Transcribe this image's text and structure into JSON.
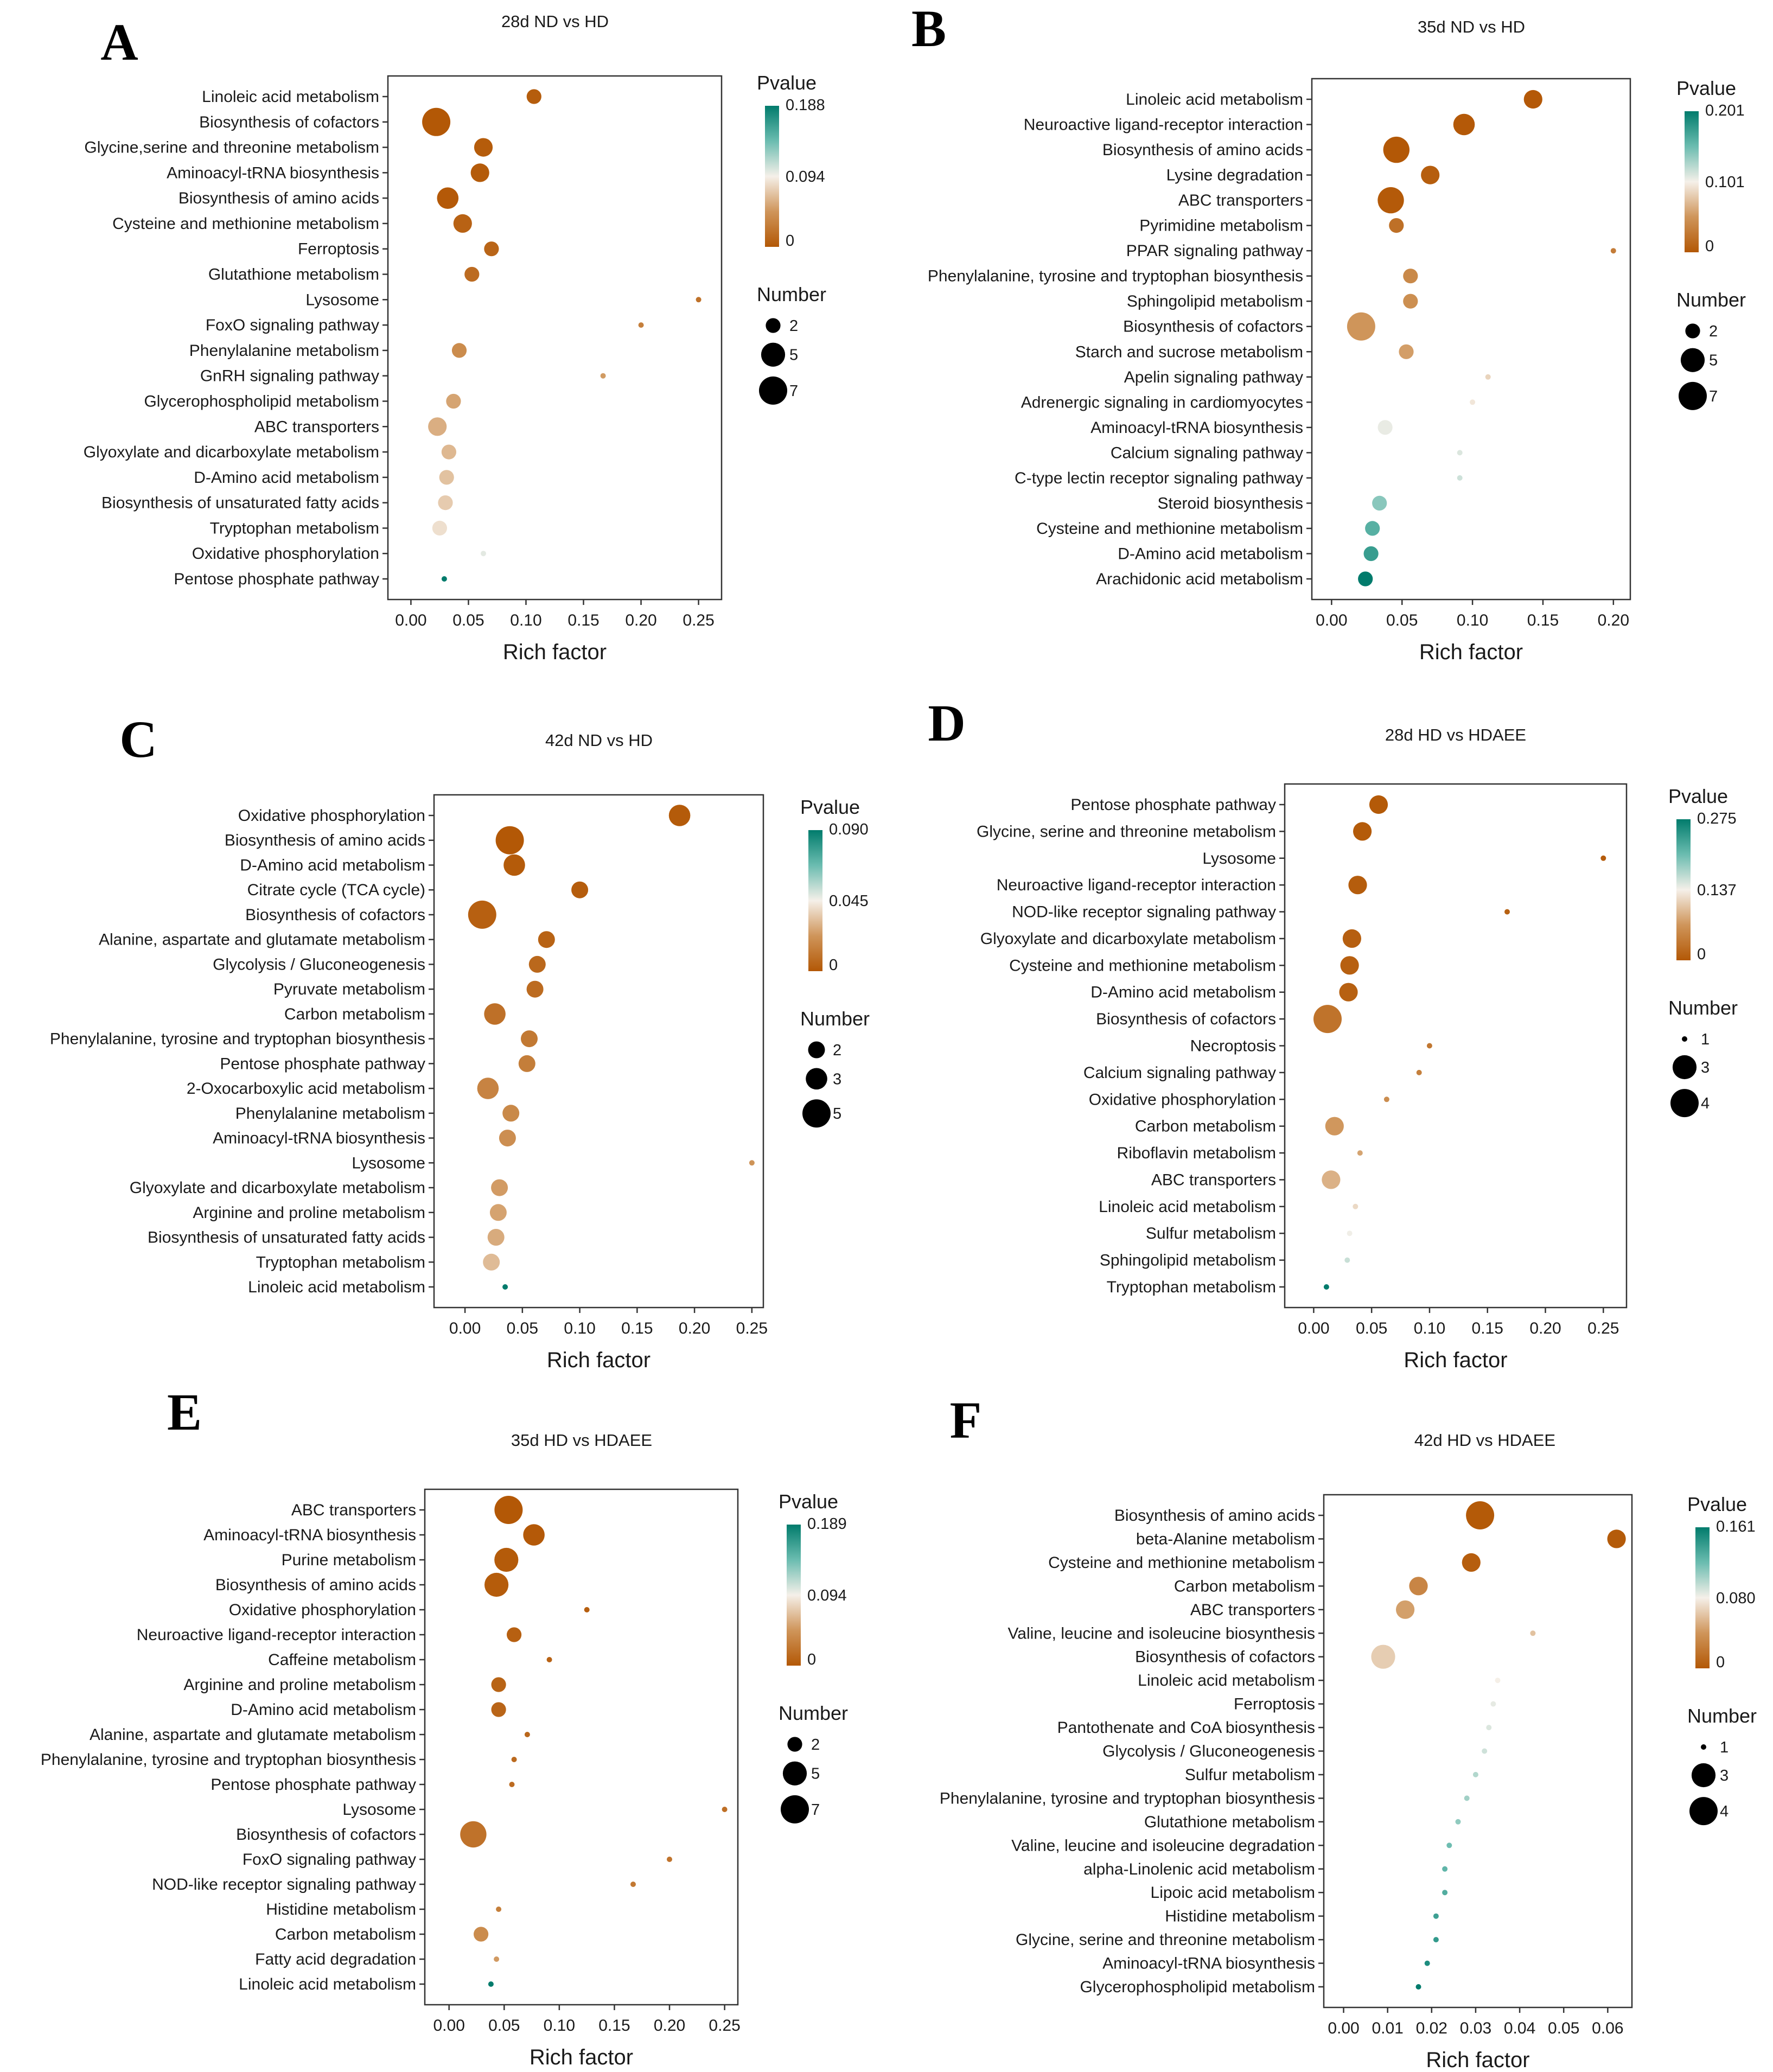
{
  "figure": {
    "panels": [
      "A",
      "B",
      "C",
      "D",
      "E",
      "F"
    ]
  },
  "chart_data": [
    {
      "panel": "A",
      "type": "scatter",
      "title": "28d ND vs HD",
      "xlabel": "Rich factor",
      "ylabel": "",
      "xlim": [
        -0.02,
        0.27
      ],
      "xticks": [
        0.0,
        0.05,
        0.1,
        0.15,
        0.2,
        0.25
      ],
      "xtick_labels": [
        "0.00",
        "0.05",
        "0.10",
        "0.15",
        "0.20",
        "0.25"
      ],
      "color_legend": {
        "title": "Pvalue",
        "labels": [
          "0.188",
          "0.094",
          "0"
        ],
        "max": 0.188
      },
      "size_legend": {
        "title": "Number",
        "values": [
          2,
          5,
          7
        ]
      },
      "pathways": [
        "Linoleic acid metabolism",
        "Biosynthesis of cofactors",
        "Glycine,serine and threonine metabolism",
        "Aminoacyl-tRNA biosynthesis",
        "Biosynthesis of amino acids",
        "Cysteine and methionine metabolism",
        "Ferroptosis",
        "Glutathione metabolism",
        "Lysosome",
        "FoxO signaling pathway",
        "Phenylalanine metabolism",
        "GnRH signaling pathway",
        "Glycerophospholipid metabolism",
        "ABC transporters",
        "Glyoxylate and dicarboxylate metabolism",
        "D-Amino acid metabolism",
        "Biosynthesis of unsaturated fatty acids",
        "Tryptophan metabolism",
        "Oxidative phosphorylation",
        "Pentose phosphate pathway"
      ],
      "rich_factor": [
        0.107,
        0.022,
        0.063,
        0.06,
        0.032,
        0.045,
        0.07,
        0.053,
        0.25,
        0.2,
        0.042,
        0.167,
        0.037,
        0.023,
        0.033,
        0.031,
        0.03,
        0.025,
        0.063,
        0.029
      ],
      "pvalue": [
        0.004,
        0.0,
        0.003,
        0.002,
        0.001,
        0.008,
        0.01,
        0.015,
        0.02,
        0.03,
        0.04,
        0.05,
        0.055,
        0.06,
        0.065,
        0.07,
        0.075,
        0.085,
        0.1,
        0.188
      ],
      "number": [
        2,
        7,
        3,
        3,
        4,
        3,
        2,
        2,
        1,
        1,
        2,
        1,
        2,
        3,
        2,
        2,
        2,
        2,
        1,
        1
      ]
    },
    {
      "panel": "B",
      "type": "scatter",
      "title": "35d ND vs HD",
      "xlabel": "Rich factor",
      "ylabel": "",
      "xlim": [
        -0.014,
        0.212
      ],
      "xticks": [
        0.0,
        0.05,
        0.1,
        0.15,
        0.2
      ],
      "xtick_labels": [
        "0.00",
        "0.05",
        "0.10",
        "0.15",
        "0.20"
      ],
      "color_legend": {
        "title": "Pvalue",
        "labels": [
          "0.201",
          "0.101",
          "0"
        ],
        "max": 0.201
      },
      "size_legend": {
        "title": "Number",
        "values": [
          2,
          5,
          7
        ]
      },
      "pathways": [
        "Linoleic acid metabolism",
        "Neuroactive ligand-receptor interaction",
        "Biosynthesis of amino acids",
        "Lysine degradation",
        "ABC transporters",
        "Pyrimidine metabolism",
        "PPAR signaling pathway",
        "Phenylalanine, tyrosine and tryptophan biosynthesis",
        "Sphingolipid metabolism",
        "Biosynthesis of cofactors",
        "Starch and sucrose metabolism",
        "Apelin signaling pathway",
        "Adrenergic signaling in cardiomyocytes",
        "Aminoacyl-tRNA biosynthesis",
        "Calcium signaling pathway",
        "C-type lectin receptor signaling pathway",
        "Steroid biosynthesis",
        "Cysteine and methionine metabolism",
        "D-Amino acid metabolism",
        "Arachidonic acid metabolism"
      ],
      "rich_factor": [
        0.143,
        0.094,
        0.046,
        0.07,
        0.042,
        0.046,
        0.2,
        0.056,
        0.056,
        0.021,
        0.053,
        0.111,
        0.1,
        0.038,
        0.091,
        0.091,
        0.034,
        0.029,
        0.028,
        0.024
      ],
      "pvalue": [
        0.001,
        0.001,
        0.0,
        0.005,
        0.002,
        0.02,
        0.03,
        0.04,
        0.045,
        0.05,
        0.055,
        0.085,
        0.095,
        0.105,
        0.11,
        0.115,
        0.14,
        0.16,
        0.175,
        0.201
      ],
      "number": [
        3,
        4,
        6,
        3,
        6,
        2,
        1,
        2,
        2,
        7,
        2,
        1,
        1,
        2,
        1,
        1,
        2,
        2,
        2,
        2
      ]
    },
    {
      "panel": "C",
      "type": "scatter",
      "title": "42d ND vs HD",
      "xlabel": "Rich factor",
      "ylabel": "",
      "xlim": [
        -0.027,
        0.26
      ],
      "xticks": [
        0.0,
        0.05,
        0.1,
        0.15,
        0.2,
        0.25
      ],
      "xtick_labels": [
        "0.00",
        "0.05",
        "0.10",
        "0.15",
        "0.20",
        "0.25"
      ],
      "color_legend": {
        "title": "Pvalue",
        "labels": [
          "0.090",
          "0.045",
          "0"
        ],
        "max": 0.09
      },
      "size_legend": {
        "title": "Number",
        "values": [
          2,
          3,
          5
        ]
      },
      "pathways": [
        "Oxidative phosphorylation",
        "Biosynthesis of amino acids",
        "D-Amino acid metabolism",
        "Citrate cycle (TCA cycle)",
        "Biosynthesis of cofactors",
        "Alanine, aspartate and glutamate metabolism",
        "Glycolysis / Gluconeogenesis",
        "Pyruvate metabolism",
        "Carbon metabolism",
        "Phenylalanine, tyrosine and tryptophan biosynthesis",
        "Pentose phosphate pathway",
        "2-Oxocarboxylic acid metabolism",
        "Phenylalanine metabolism",
        "Aminoacyl-tRNA biosynthesis",
        "Lysosome",
        "Glyoxylate and dicarboxylate metabolism",
        "Arginine and proline metabolism",
        "Biosynthesis of unsaturated fatty acids",
        "Tryptophan metabolism",
        "Linoleic acid metabolism"
      ],
      "rich_factor": [
        0.187,
        0.039,
        0.043,
        0.1,
        0.015,
        0.071,
        0.063,
        0.061,
        0.026,
        0.056,
        0.054,
        0.02,
        0.04,
        0.037,
        0.25,
        0.03,
        0.029,
        0.027,
        0.023,
        0.035
      ],
      "pvalue": [
        0.001,
        0.0,
        0.001,
        0.002,
        0.003,
        0.004,
        0.006,
        0.007,
        0.009,
        0.012,
        0.014,
        0.016,
        0.018,
        0.02,
        0.022,
        0.024,
        0.026,
        0.028,
        0.032,
        0.09
      ],
      "number": [
        3,
        5,
        3,
        2,
        5,
        2,
        2,
        2,
        3,
        2,
        2,
        3,
        2,
        2,
        1,
        2,
        2,
        2,
        2,
        1
      ]
    },
    {
      "panel": "D",
      "type": "scatter",
      "title": "28d HD vs HDAEE",
      "xlabel": "Rich factor",
      "ylabel": "",
      "xlim": [
        -0.025,
        0.27
      ],
      "xticks": [
        0.0,
        0.05,
        0.1,
        0.15,
        0.2,
        0.25
      ],
      "xtick_labels": [
        "0.00",
        "0.05",
        "0.10",
        "0.15",
        "0.20",
        "0.25"
      ],
      "color_legend": {
        "title": "Pvalue",
        "labels": [
          "0.275",
          "0.137",
          "0"
        ],
        "max": 0.275
      },
      "size_legend": {
        "title": "Number",
        "values": [
          1,
          3,
          4
        ]
      },
      "pathways": [
        "Pentose phosphate pathway",
        "Glycine, serine and threonine metabolism",
        "Lysosome",
        "Neuroactive ligand-receptor interaction",
        "NOD-like receptor signaling pathway",
        "Glyoxylate and dicarboxylate metabolism",
        "Cysteine and methionine metabolism",
        "D-Amino acid metabolism",
        "Biosynthesis of cofactors",
        "Necroptosis",
        "Calcium signaling pathway",
        "Oxidative phosphorylation",
        "Carbon metabolism",
        "Riboflavin metabolism",
        "ABC transporters",
        "Linoleic acid metabolism",
        "Sulfur metabolism",
        "Sphingolipid metabolism",
        "Tryptophan metabolism"
      ],
      "rich_factor": [
        0.056,
        0.042,
        0.25,
        0.038,
        0.167,
        0.033,
        0.031,
        0.03,
        0.012,
        0.1,
        0.091,
        0.063,
        0.018,
        0.04,
        0.015,
        0.036,
        0.031,
        0.029,
        0.011
      ],
      "pvalue": [
        0.002,
        0.003,
        0.005,
        0.006,
        0.01,
        0.008,
        0.009,
        0.01,
        0.03,
        0.035,
        0.045,
        0.06,
        0.07,
        0.08,
        0.09,
        0.12,
        0.14,
        0.16,
        0.275
      ],
      "number": [
        2,
        2,
        1,
        2,
        1,
        2,
        2,
        2,
        4,
        1,
        1,
        1,
        2,
        1,
        2,
        1,
        1,
        1,
        1
      ]
    },
    {
      "panel": "E",
      "type": "scatter",
      "title": "35d HD vs HDAEE",
      "xlabel": "Rich factor",
      "ylabel": "",
      "xlim": [
        -0.022,
        0.262
      ],
      "xticks": [
        0.0,
        0.05,
        0.1,
        0.15,
        0.2,
        0.25
      ],
      "xtick_labels": [
        "0.00",
        "0.05",
        "0.10",
        "0.15",
        "0.20",
        "0.25"
      ],
      "color_legend": {
        "title": "Pvalue",
        "labels": [
          "0.189",
          "0.094",
          "0"
        ],
        "max": 0.189
      },
      "size_legend": {
        "title": "Number",
        "values": [
          2,
          5,
          7
        ]
      },
      "pathways": [
        "ABC transporters",
        "Aminoacyl-tRNA biosynthesis",
        "Purine metabolism",
        "Biosynthesis of amino acids",
        "Oxidative phosphorylation",
        "Neuroactive ligand-receptor interaction",
        "Caffeine metabolism",
        "Arginine and proline metabolism",
        "D-Amino acid metabolism",
        "Alanine, aspartate and glutamate metabolism",
        "Phenylalanine, tyrosine and tryptophan biosynthesis",
        "Pentose phosphate pathway",
        "Lysosome",
        "Biosynthesis of cofactors",
        "FoxO signaling pathway",
        "NOD-like receptor signaling pathway",
        "Histidine metabolism",
        "Carbon metabolism",
        "Fatty acid degradation",
        "Linoleic acid metabolism"
      ],
      "rich_factor": [
        0.054,
        0.077,
        0.052,
        0.043,
        0.125,
        0.059,
        0.091,
        0.045,
        0.045,
        0.071,
        0.059,
        0.057,
        0.25,
        0.022,
        0.2,
        0.167,
        0.045,
        0.029,
        0.043,
        0.038
      ],
      "pvalue": [
        0.0,
        0.001,
        0.002,
        0.003,
        0.005,
        0.006,
        0.008,
        0.009,
        0.01,
        0.012,
        0.014,
        0.015,
        0.018,
        0.02,
        0.022,
        0.025,
        0.03,
        0.04,
        0.05,
        0.189
      ],
      "number": [
        7,
        4,
        5,
        5,
        1,
        2,
        1,
        2,
        2,
        1,
        1,
        1,
        1,
        6,
        1,
        1,
        1,
        2,
        1,
        1
      ]
    },
    {
      "panel": "F",
      "type": "scatter",
      "title": "42d HD vs HDAEE",
      "xlabel": "Rich factor",
      "ylabel": "",
      "xlim": [
        -0.0045,
        0.0655
      ],
      "xticks": [
        0.0,
        0.01,
        0.02,
        0.03,
        0.04,
        0.05,
        0.06
      ],
      "xtick_labels": [
        "0.00",
        "0.01",
        "0.02",
        "0.03",
        "0.04",
        "0.05",
        "0.06"
      ],
      "color_legend": {
        "title": "Pvalue",
        "labels": [
          "0.161",
          "0.080",
          "0"
        ],
        "max": 0.161
      },
      "size_legend": {
        "title": "Number",
        "values": [
          1,
          3,
          4
        ]
      },
      "pathways": [
        "Biosynthesis of amino acids",
        "beta-Alanine metabolism",
        "Cysteine and methionine metabolism",
        "Carbon metabolism",
        "ABC transporters",
        "Valine, leucine and isoleucine biosynthesis",
        "Biosynthesis of cofactors",
        "Linoleic acid metabolism",
        "Ferroptosis",
        "Pantothenate and CoA biosynthesis",
        "Glycolysis / Gluconeogenesis",
        "Sulfur metabolism",
        "Phenylalanine, tyrosine and tryptophan biosynthesis",
        "Glutathione metabolism",
        "Valine, leucine and isoleucine degradation",
        "alpha-Linolenic acid metabolism",
        "Lipoic acid metabolism",
        "Histidine metabolism",
        "Glycine, serine and threonine metabolism",
        "Aminoacyl-tRNA biosynthesis",
        "Glycerophospholipid metabolism"
      ],
      "rich_factor": [
        0.031,
        0.062,
        0.029,
        0.017,
        0.014,
        0.043,
        0.009,
        0.035,
        0.034,
        0.033,
        0.032,
        0.03,
        0.028,
        0.026,
        0.024,
        0.023,
        0.023,
        0.021,
        0.021,
        0.019,
        0.017
      ],
      "pvalue": [
        0.001,
        0.002,
        0.004,
        0.03,
        0.045,
        0.06,
        0.065,
        0.08,
        0.085,
        0.088,
        0.092,
        0.1,
        0.105,
        0.11,
        0.12,
        0.125,
        0.13,
        0.138,
        0.142,
        0.15,
        0.161
      ],
      "number": [
        4,
        2,
        2,
        2,
        2,
        1,
        3,
        1,
        1,
        1,
        1,
        1,
        1,
        1,
        1,
        1,
        1,
        1,
        1,
        1,
        1
      ]
    }
  ]
}
